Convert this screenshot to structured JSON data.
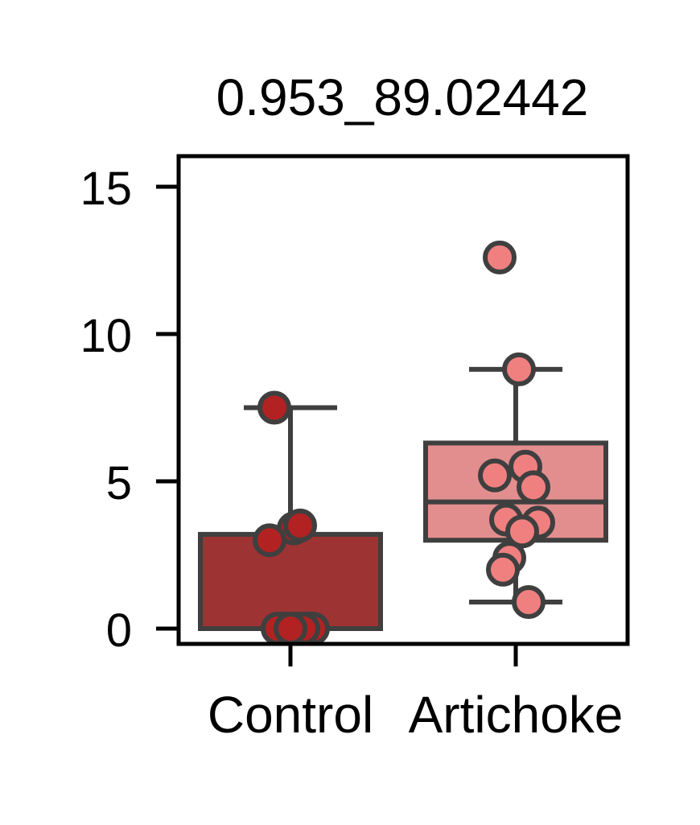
{
  "chart_data": {
    "type": "box",
    "title": "0.953_89.02442",
    "xlabel": "",
    "ylabel": "",
    "categories": [
      "Control",
      "Artichoke"
    ],
    "ylim": [
      -0.5,
      16
    ],
    "yticks": [
      0,
      5,
      10,
      15
    ],
    "grid": false,
    "legend": "none",
    "boxes": [
      {
        "category": "Control",
        "color": "#9e3333",
        "point_color": "#b22222",
        "whisker_low": 0,
        "q1": 0,
        "median": 0,
        "q3": 3.2,
        "whisker_high": 7.5,
        "points": [
          7.5,
          3.4,
          3.5,
          3.0,
          0,
          0,
          0,
          0,
          0,
          0,
          0,
          0
        ]
      },
      {
        "category": "Artichoke",
        "color": "#e38e8e",
        "point_color": "#f08080",
        "whisker_low": 0.9,
        "q1": 3.0,
        "median": 4.3,
        "q3": 6.3,
        "whisker_high": 8.8,
        "points": [
          12.6,
          8.8,
          5.5,
          5.2,
          4.8,
          3.7,
          3.6,
          3.3,
          2.4,
          2.0,
          0.9
        ]
      }
    ],
    "colors": {
      "box_edge": "#3f3f3f",
      "axis": "#000000"
    }
  }
}
